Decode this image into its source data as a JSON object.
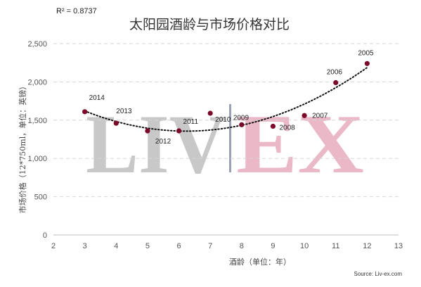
{
  "chart_data": {
    "type": "scatter",
    "title": "太阳园酒龄与市场价格对比",
    "r2_text": "R² = 0.8737",
    "xlabel": "酒龄（单位：年）",
    "ylabel": "市场价格（12*750ml，单位：英镑）",
    "xlim": [
      2,
      13
    ],
    "ylim": [
      0,
      2500
    ],
    "x_ticks": [
      2,
      3,
      4,
      5,
      6,
      7,
      8,
      9,
      10,
      11,
      12,
      13
    ],
    "y_ticks": [
      0,
      500,
      1000,
      1500,
      2000,
      2500
    ],
    "y_tick_labels": [
      "0",
      "500",
      "1,000",
      "1,500",
      "2,000",
      "2,500"
    ],
    "grid": "horizontal-dashed",
    "marker_color": "#7b0a2a",
    "trendline": "quadratic-dotted",
    "watermark": {
      "left": "LIV",
      "right": "EX",
      "left_color": "#c8c8c8",
      "right_color": "#eab8c6"
    },
    "source": "Source: Liv-ex.com",
    "points": [
      {
        "x": 3,
        "y": 1610,
        "label": "2014"
      },
      {
        "x": 4,
        "y": 1460,
        "label": "2013"
      },
      {
        "x": 5,
        "y": 1360,
        "label": "2012"
      },
      {
        "x": 6,
        "y": 1360,
        "label": "2011"
      },
      {
        "x": 7,
        "y": 1590,
        "label": "2010"
      },
      {
        "x": 8,
        "y": 1440,
        "label": "2009"
      },
      {
        "x": 9,
        "y": 1420,
        "label": "2008"
      },
      {
        "x": 10,
        "y": 1560,
        "label": "2007"
      },
      {
        "x": 11,
        "y": 1990,
        "label": "2006"
      },
      {
        "x": 12,
        "y": 2240,
        "label": "2005"
      }
    ]
  }
}
